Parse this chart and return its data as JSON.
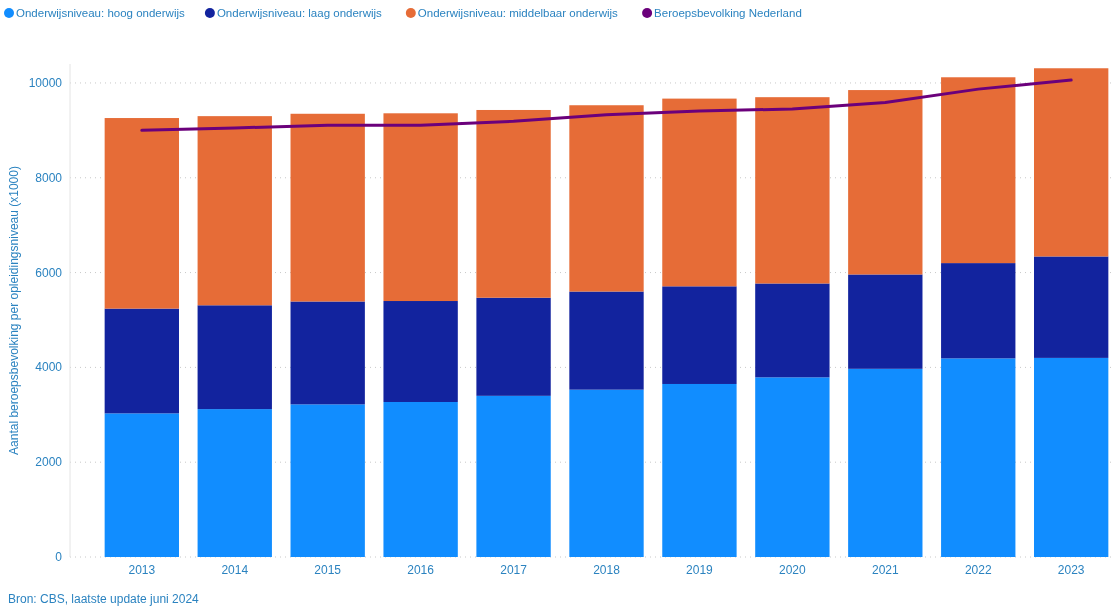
{
  "chart_data": {
    "type": "bar",
    "stacked": true,
    "ylabel": "Aantal beroepsbevolking per opleidingsniveau (x1000)",
    "categories": [
      "2013",
      "2014",
      "2015",
      "2016",
      "2017",
      "2018",
      "2019",
      "2020",
      "2021",
      "2022",
      "2023"
    ],
    "series": [
      {
        "name": "Onderwijsniveau: hoog onderwijs",
        "color": "#118dff",
        "values": [
          3030,
          3120,
          3220,
          3270,
          3400,
          3530,
          3650,
          3790,
          3970,
          4190,
          4200
        ]
      },
      {
        "name": "Onderwijsniveau: laag onderwijs",
        "color": "#12239e",
        "values": [
          2210,
          2190,
          2170,
          2130,
          2070,
          2070,
          2060,
          1980,
          1990,
          2010,
          2140
        ]
      },
      {
        "name": "Onderwijsniveau: middelbaar onderwijs",
        "color": "#e66c37",
        "values": [
          4020,
          3990,
          3960,
          3960,
          3960,
          3930,
          3960,
          3930,
          3890,
          3920,
          3970
        ]
      },
      {
        "name": "Beroepsbevolking Nederland",
        "color": "#6b007b",
        "type": "line",
        "values": [
          9000,
          9050,
          9110,
          9110,
          9190,
          9330,
          9410,
          9450,
          9590,
          9870,
          10060
        ]
      }
    ],
    "ylim": [
      0,
      10400
    ],
    "yticks": [
      0,
      2000,
      4000,
      6000,
      8000,
      10000
    ],
    "grid": "y",
    "legend": "top left",
    "marker": "none",
    "annotations": [
      "Bron: CBS, laatste update juni 2024"
    ]
  }
}
